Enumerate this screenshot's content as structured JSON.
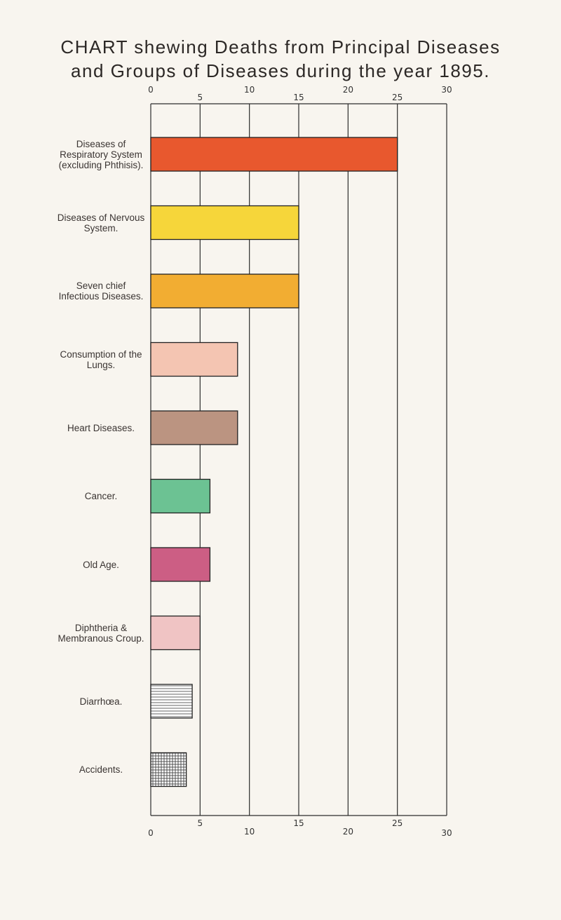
{
  "title_line1": "CHART shewing Deaths from Principal Diseases",
  "title_line2": "and Groups of Diseases during the year 1895.",
  "chart_data": {
    "type": "bar",
    "orientation": "horizontal",
    "title": "CHART shewing Deaths from Principal Diseases and Groups of Diseases during the year 1895.",
    "xlabel": "",
    "ylabel": "",
    "xlim": [
      0,
      30
    ],
    "grid": true,
    "top_ticks": [
      "0",
      "5",
      "10",
      "15",
      "20",
      "25",
      "30"
    ],
    "bottom_ticks": [
      "0",
      "5",
      "10",
      "15",
      "20",
      "25",
      "30"
    ],
    "categories": [
      "Diseases of Respiratory System (excluding Phthisis).",
      "Diseases of Nervous System.",
      "Seven chief Infectious Diseases.",
      "Consumption of the Lungs.",
      "Heart Diseases.",
      "Cancer.",
      "Old Age.",
      "Diphtheria & Membranous Croup.",
      "Diarrhœa.",
      "Accidents."
    ],
    "values": [
      25.0,
      15.0,
      15.0,
      8.8,
      8.8,
      6.0,
      6.0,
      5.0,
      4.2,
      3.6
    ],
    "colors": [
      "#e8582e",
      "#f6d63a",
      "#f2ad32",
      "#f4c5b2",
      "#bb9481",
      "#6cc293",
      "#cc5e84",
      "#f0c4c4",
      "#ffffff",
      "#ffffff"
    ],
    "patterns": [
      "",
      "",
      "",
      "",
      "",
      "",
      "",
      "",
      "lines",
      "grid"
    ]
  }
}
